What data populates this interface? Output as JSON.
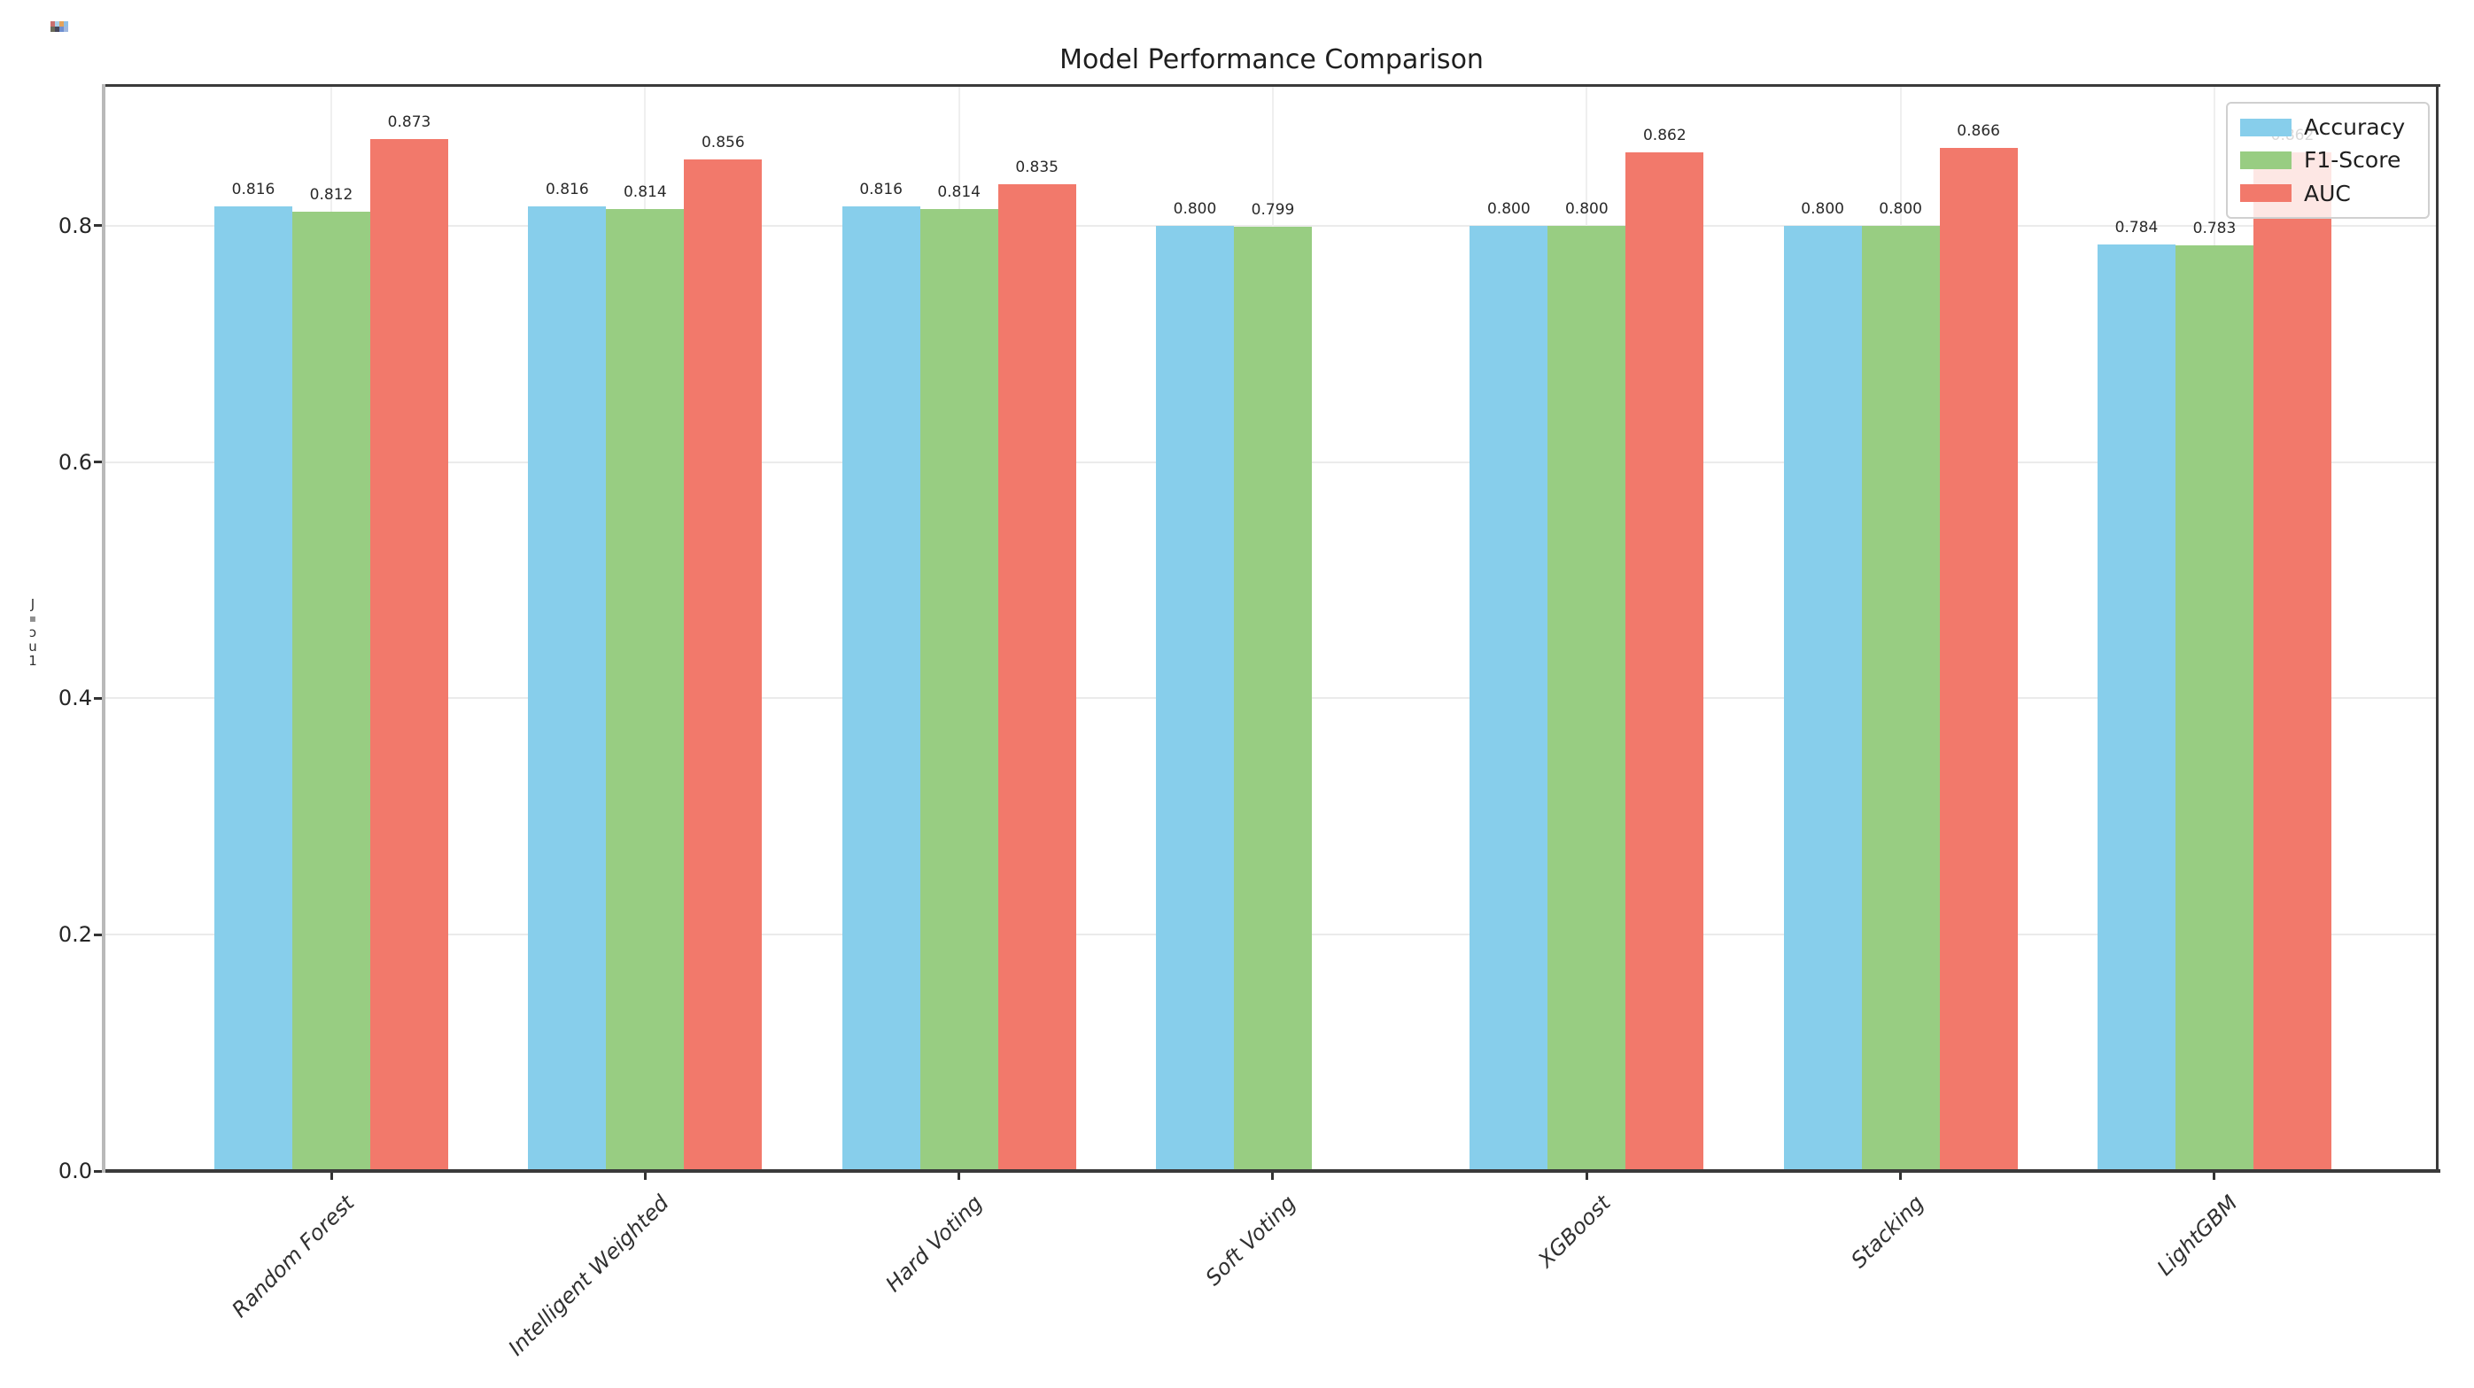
{
  "figure": {
    "title": "Model Performance Comparison",
    "background": "#ffffff"
  },
  "chart_data": {
    "type": "bar",
    "title": "Model Performance Comparison",
    "categories": [
      "Random Forest",
      "Intelligent Weighted",
      "Hard Voting",
      "Soft Voting",
      "XGBoost",
      "Stacking",
      "LightGBM"
    ],
    "series": [
      {
        "name": "Accuracy",
        "color": "#87CEEB",
        "values": [
          0.816,
          0.816,
          0.816,
          0.8,
          0.8,
          0.8,
          0.784
        ]
      },
      {
        "name": "F1-Score",
        "color": "#98CD82",
        "values": [
          0.812,
          0.814,
          0.814,
          0.799,
          0.8,
          0.8,
          0.783
        ]
      },
      {
        "name": "AUC",
        "color": "#F2796B",
        "values": [
          0.873,
          0.856,
          0.835,
          null,
          0.862,
          0.866,
          0.862
        ]
      }
    ],
    "bar_value_label_decimals": 3,
    "missing_bars": [
      {
        "category": "Soft Voting",
        "series": "AUC"
      }
    ],
    "obscured_labels": [
      {
        "category": "LightGBM",
        "series": "AUC",
        "text": "0.862",
        "note": "partially hidden behind legend"
      }
    ],
    "xlabel": "",
    "ylabel": "",
    "ytick_labels": [
      "0.0",
      "0.2",
      "0.4",
      "0.6",
      "0.8"
    ],
    "ytick_values": [
      0.0,
      0.2,
      0.4,
      0.6,
      0.8
    ],
    "ylim": [
      0,
      0.918
    ],
    "grid": true,
    "legend": {
      "position": "upper right",
      "entries": [
        "Accuracy",
        "F1-Score",
        "AUC"
      ]
    }
  },
  "decorations": {
    "corner_glyph_colors_row1": [
      "#c96f6f",
      "#a9cfe9",
      "#e3a35b",
      "#8fbfe6"
    ],
    "corner_glyph_colors_row2": [
      "#6b6b5a",
      "#46465a",
      "#6e8ecf",
      "#9fb8e0"
    ],
    "ylabel_fragment_glyphs": [
      "J",
      "▪",
      "ɔ",
      "u",
      "1"
    ]
  },
  "colors": {
    "accuracy": "#87CEEB",
    "f1score": "#98CD82",
    "auc": "#F2796B",
    "grid": "#ebebeb",
    "spine": "#3a3a3a",
    "spine_left": "#b9b9b9",
    "text": "#262626"
  }
}
